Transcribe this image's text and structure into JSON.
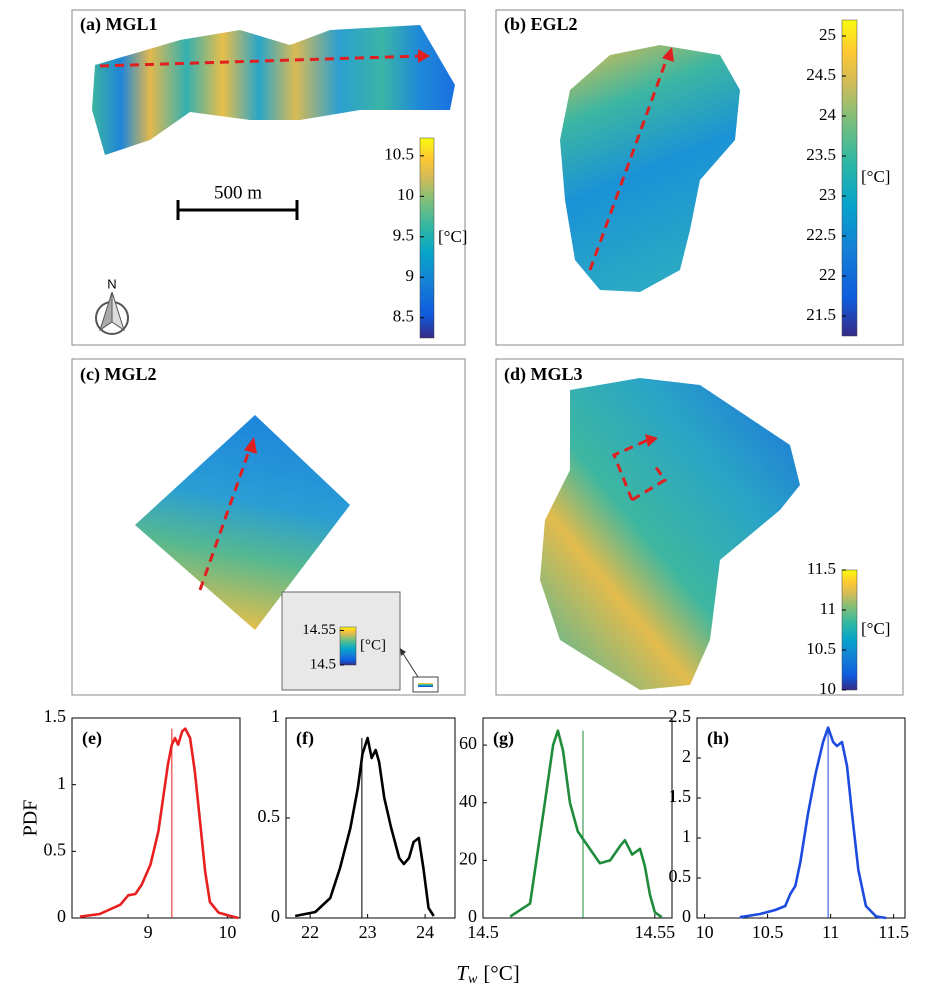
{
  "maps": [
    {
      "label": "(a) MGL1",
      "label_color": "#e8201f",
      "colorbar": {
        "lim": [
          8.25,
          10.72
        ],
        "ticks": [
          8.5,
          9,
          9.5,
          10,
          10.5
        ],
        "unit": "[°C]"
      }
    },
    {
      "label": "(b) EGL2",
      "label_color": "#000000",
      "colorbar": {
        "lim": [
          21.25,
          25.2
        ],
        "ticks": [
          21.5,
          22,
          22.5,
          23,
          23.5,
          24,
          24.5,
          25
        ],
        "unit": "[°C]"
      }
    },
    {
      "label": "(c) MGL2",
      "label_color": "#1e8c3a",
      "colorbar": {
        "lim": [
          14.5,
          14.555
        ],
        "ticks": [
          14.5,
          14.55
        ],
        "unit": "[°C]"
      }
    },
    {
      "label": "(d) MGL3",
      "label_color": "#1d4be0",
      "colorbar": {
        "lim": [
          10,
          11.5
        ],
        "ticks": [
          10,
          10.5,
          11,
          11.5
        ],
        "unit": "[°C]"
      }
    }
  ],
  "scale_bar": "500 m",
  "north": "N",
  "figure_xlabel": {
    "symbol": "T",
    "subscript": "w",
    "unit": "[°C]"
  },
  "chart_data": [
    {
      "type": "line",
      "title": "(e)",
      "title_color": "#e8201f",
      "ylabel": "PDF",
      "x": [
        8.14,
        8.39,
        8.65,
        8.75,
        8.84,
        8.92,
        9.03,
        9.13,
        9.19,
        9.25,
        9.3,
        9.34,
        9.38,
        9.43,
        9.47,
        9.53,
        9.59,
        9.66,
        9.72,
        9.78,
        9.89,
        10.01,
        10.14
      ],
      "series": [
        {
          "color": "#e8201f",
          "values": [
            0.01,
            0.03,
            0.1,
            0.17,
            0.18,
            0.25,
            0.4,
            0.65,
            0.9,
            1.15,
            1.3,
            1.35,
            1.3,
            1.4,
            1.42,
            1.35,
            1.1,
            0.7,
            0.35,
            0.12,
            0.04,
            0.02,
            0
          ]
        }
      ],
      "mean_line": 9.3,
      "xlim": [
        8.04,
        10.16
      ],
      "xticks": [
        9,
        10
      ],
      "ylim": [
        0,
        1.5
      ],
      "yticks": [
        0,
        0.5,
        1,
        1.5
      ]
    },
    {
      "type": "line",
      "title": "(f)",
      "title_color": "#000000",
      "x": [
        21.74,
        22.09,
        22.35,
        22.52,
        22.7,
        22.83,
        22.91,
        23.0,
        23.07,
        23.14,
        23.2,
        23.29,
        23.41,
        23.55,
        23.63,
        23.72,
        23.8,
        23.89,
        23.97,
        24.06,
        24.15
      ],
      "series": [
        {
          "color": "#000000",
          "values": [
            0.01,
            0.03,
            0.1,
            0.25,
            0.45,
            0.65,
            0.82,
            0.9,
            0.8,
            0.84,
            0.78,
            0.6,
            0.45,
            0.3,
            0.27,
            0.3,
            0.38,
            0.4,
            0.25,
            0.05,
            0.01
          ]
        }
      ],
      "mean_line": 22.9,
      "xlim": [
        21.58,
        24.52
      ],
      "xticks": [
        22,
        23,
        24
      ],
      "ylim": [
        0,
        1
      ],
      "yticks": [
        0,
        0.5,
        1
      ]
    },
    {
      "type": "line",
      "title": "(g)",
      "title_color": "#1e8c3a",
      "x": [
        14.5079,
        14.5137,
        14.518,
        14.5204,
        14.5218,
        14.5233,
        14.5253,
        14.5276,
        14.5311,
        14.534,
        14.537,
        14.5399,
        14.5413,
        14.5434,
        14.5457,
        14.5471,
        14.5486,
        14.55,
        14.552
      ],
      "series": [
        {
          "color": "#1e8c3a",
          "values": [
            0.5,
            5,
            40,
            60,
            65,
            58,
            40,
            30,
            24,
            19,
            20,
            25,
            27,
            22,
            24,
            18,
            8,
            2,
            0.3
          ]
        }
      ],
      "mean_line": 14.5291,
      "xlim": [
        14.5,
        14.555
      ],
      "xticks": [
        14.5,
        14.55
      ],
      "ylim": [
        0,
        69.4
      ],
      "yticks": [
        0,
        20,
        40,
        60
      ]
    },
    {
      "type": "line",
      "title": "(h)",
      "title_color": "#1d4be0",
      "x": [
        10.28,
        10.44,
        10.56,
        10.64,
        10.68,
        10.72,
        10.76,
        10.82,
        10.88,
        10.94,
        10.98,
        11.02,
        11.05,
        11.09,
        11.13,
        11.17,
        11.22,
        11.28,
        11.36,
        11.44
      ],
      "series": [
        {
          "color": "#1d4be0",
          "values": [
            0.01,
            0.05,
            0.1,
            0.15,
            0.3,
            0.4,
            0.7,
            1.3,
            1.8,
            2.2,
            2.38,
            2.2,
            2.15,
            2.2,
            1.9,
            1.3,
            0.6,
            0.15,
            0.02,
            0
          ]
        }
      ],
      "mean_line": 10.98,
      "xlim": [
        9.94,
        11.59
      ],
      "xticks": [
        10,
        10.5,
        11,
        11.5
      ],
      "ylim": [
        0,
        2.5
      ],
      "yticks": [
        0,
        0.5,
        1,
        1.5,
        2,
        2.5
      ]
    }
  ]
}
